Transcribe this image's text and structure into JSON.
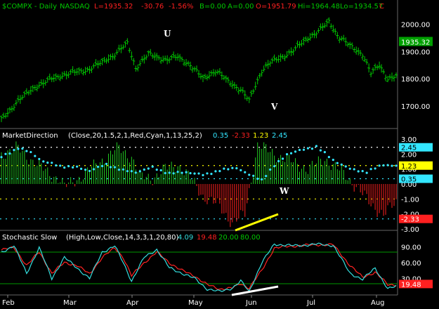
{
  "colors": {
    "background": "#000000",
    "price_bar": "#00c800",
    "grid": "#ffff00",
    "red": "#ff2020",
    "cyan": "#33e6ff",
    "green_bar": "#22cc22",
    "stoch_k": "#33dddd",
    "stoch_d": "#ff2222",
    "annotation": "#ffffff",
    "dotted": "#ffffff"
  },
  "header": {
    "symbol": "$COMPX - Daily",
    "exchange": "NASDAQ",
    "last": "L=1935.32",
    "change": "-30.76",
    "change_pct": "-1.56%",
    "bid": "B=0.00",
    "ask": "A=0.00",
    "open": "O=1951.79",
    "high": "Hi=1964.48",
    "low": "Lo=1934.57",
    "close_tag": "C"
  },
  "chart_data": [
    {
      "type": "ohlc",
      "name": "price",
      "x": [
        "Feb",
        "Mar",
        "Apr",
        "May",
        "Jun",
        "Jul",
        "Aug"
      ],
      "y_ticks": [
        "2000.00",
        "1900.00",
        "1800.00",
        "1700.00"
      ],
      "ylim": [
        1620,
        2050
      ],
      "last_value": "1935.32",
      "annotations": [
        "U",
        "V"
      ],
      "keypoints": [
        [
          0,
          1650
        ],
        [
          8,
          1720
        ],
        [
          16,
          1770
        ],
        [
          24,
          1800
        ],
        [
          32,
          1820
        ],
        [
          40,
          1830
        ],
        [
          48,
          1860
        ],
        [
          54,
          1890
        ],
        [
          60,
          1930
        ],
        [
          64,
          1840
        ],
        [
          70,
          1890
        ],
        [
          78,
          1870
        ],
        [
          84,
          1880
        ],
        [
          90,
          1850
        ],
        [
          96,
          1800
        ],
        [
          102,
          1830
        ],
        [
          108,
          1790
        ],
        [
          114,
          1760
        ],
        [
          118,
          1720
        ],
        [
          124,
          1830
        ],
        [
          128,
          1860
        ],
        [
          134,
          1880
        ],
        [
          140,
          1910
        ],
        [
          146,
          1950
        ],
        [
          152,
          1980
        ],
        [
          156,
          2010
        ],
        [
          160,
          1960
        ],
        [
          166,
          1920
        ],
        [
          172,
          1890
        ],
        [
          176,
          1820
        ],
        [
          180,
          1850
        ],
        [
          184,
          1800
        ],
        [
          188,
          1810
        ]
      ]
    },
    {
      "type": "bar",
      "name": "MarketDirection",
      "label": "MarketDirection",
      "params": "(Close,20,1.5,2,1,Red,Cyan,1,13,25,2)",
      "values_printed": [
        "0.35",
        "-2.33",
        "1.23",
        "2.45"
      ],
      "y_ticks": [
        "3.00",
        "2.00",
        "1.00",
        "0.00",
        "-1.00",
        "-2.00",
        "-3.00"
      ],
      "ylim": [
        -3,
        3
      ],
      "right_tags": [
        "2.45",
        "1.23",
        "0.35",
        "-2.33"
      ],
      "annotations": [
        "W"
      ],
      "histogram_keypoints": [
        [
          0,
          2.0
        ],
        [
          8,
          2.4
        ],
        [
          16,
          1.4
        ],
        [
          24,
          0.6
        ],
        [
          28,
          0.3
        ],
        [
          30,
          -0.2
        ],
        [
          38,
          0.5
        ],
        [
          46,
          1.4
        ],
        [
          56,
          2.4
        ],
        [
          62,
          1.8
        ],
        [
          66,
          0.5
        ],
        [
          72,
          0.4
        ],
        [
          78,
          1.0
        ],
        [
          84,
          1.3
        ],
        [
          90,
          0.4
        ],
        [
          96,
          -0.8
        ],
        [
          104,
          -1.5
        ],
        [
          110,
          -2.6
        ],
        [
          116,
          -2.0
        ],
        [
          122,
          2.6
        ],
        [
          130,
          2.0
        ],
        [
          138,
          1.5
        ],
        [
          146,
          1.0
        ],
        [
          154,
          1.7
        ],
        [
          162,
          0.8
        ],
        [
          170,
          -0.3
        ],
        [
          176,
          -1.4
        ],
        [
          182,
          -2.0
        ],
        [
          188,
          -1.3
        ]
      ],
      "dots_keypoints": [
        [
          0,
          1.8
        ],
        [
          8,
          2.4
        ],
        [
          14,
          2.1
        ],
        [
          20,
          1.5
        ],
        [
          28,
          1.2
        ],
        [
          36,
          1.1
        ],
        [
          42,
          0.9
        ],
        [
          50,
          1.3
        ],
        [
          58,
          0.9
        ],
        [
          64,
          0.8
        ],
        [
          72,
          1.1
        ],
        [
          80,
          0.7
        ],
        [
          88,
          0.8
        ],
        [
          96,
          0.6
        ],
        [
          104,
          0.9
        ],
        [
          112,
          1.1
        ],
        [
          118,
          0.6
        ],
        [
          124,
          0.3
        ],
        [
          130,
          1.2
        ],
        [
          136,
          2.0
        ],
        [
          144,
          2.3
        ],
        [
          150,
          2.5
        ],
        [
          158,
          1.6
        ],
        [
          166,
          1.0
        ],
        [
          174,
          0.8
        ],
        [
          182,
          1.3
        ],
        [
          188,
          1.2
        ]
      ]
    },
    {
      "type": "line",
      "name": "Stochastic Slow",
      "label": "Stochastic Slow",
      "params": "(High,Low,Close,14,3,3,1,20,80)",
      "values_printed": [
        "4.09",
        "19.48",
        "20.00",
        "80.00"
      ],
      "y_ticks": [
        "90.00",
        "60.00",
        "30.00"
      ],
      "ylim": [
        0,
        100
      ],
      "right_tags": [
        "19.48"
      ],
      "k_keypoints": [
        [
          0,
          80
        ],
        [
          6,
          92
        ],
        [
          12,
          40
        ],
        [
          18,
          88
        ],
        [
          24,
          30
        ],
        [
          30,
          70
        ],
        [
          36,
          50
        ],
        [
          42,
          30
        ],
        [
          48,
          80
        ],
        [
          54,
          92
        ],
        [
          58,
          60
        ],
        [
          62,
          25
        ],
        [
          68,
          70
        ],
        [
          74,
          85
        ],
        [
          80,
          50
        ],
        [
          86,
          40
        ],
        [
          92,
          30
        ],
        [
          98,
          10
        ],
        [
          104,
          5
        ],
        [
          110,
          12
        ],
        [
          114,
          25
        ],
        [
          118,
          5
        ],
        [
          124,
          60
        ],
        [
          130,
          95
        ],
        [
          140,
          92
        ],
        [
          150,
          95
        ],
        [
          158,
          93
        ],
        [
          166,
          40
        ],
        [
          172,
          28
        ],
        [
          178,
          50
        ],
        [
          184,
          10
        ],
        [
          188,
          15
        ]
      ],
      "d_keypoints": [
        [
          0,
          85
        ],
        [
          6,
          88
        ],
        [
          12,
          55
        ],
        [
          18,
          80
        ],
        [
          24,
          40
        ],
        [
          30,
          60
        ],
        [
          36,
          55
        ],
        [
          42,
          38
        ],
        [
          48,
          70
        ],
        [
          54,
          88
        ],
        [
          58,
          70
        ],
        [
          62,
          35
        ],
        [
          68,
          60
        ],
        [
          74,
          80
        ],
        [
          80,
          60
        ],
        [
          86,
          45
        ],
        [
          92,
          35
        ],
        [
          98,
          18
        ],
        [
          104,
          10
        ],
        [
          110,
          12
        ],
        [
          114,
          20
        ],
        [
          118,
          12
        ],
        [
          124,
          45
        ],
        [
          130,
          88
        ],
        [
          140,
          92
        ],
        [
          150,
          94
        ],
        [
          158,
          94
        ],
        [
          166,
          55
        ],
        [
          172,
          32
        ],
        [
          178,
          42
        ],
        [
          184,
          18
        ],
        [
          188,
          18
        ]
      ]
    }
  ]
}
